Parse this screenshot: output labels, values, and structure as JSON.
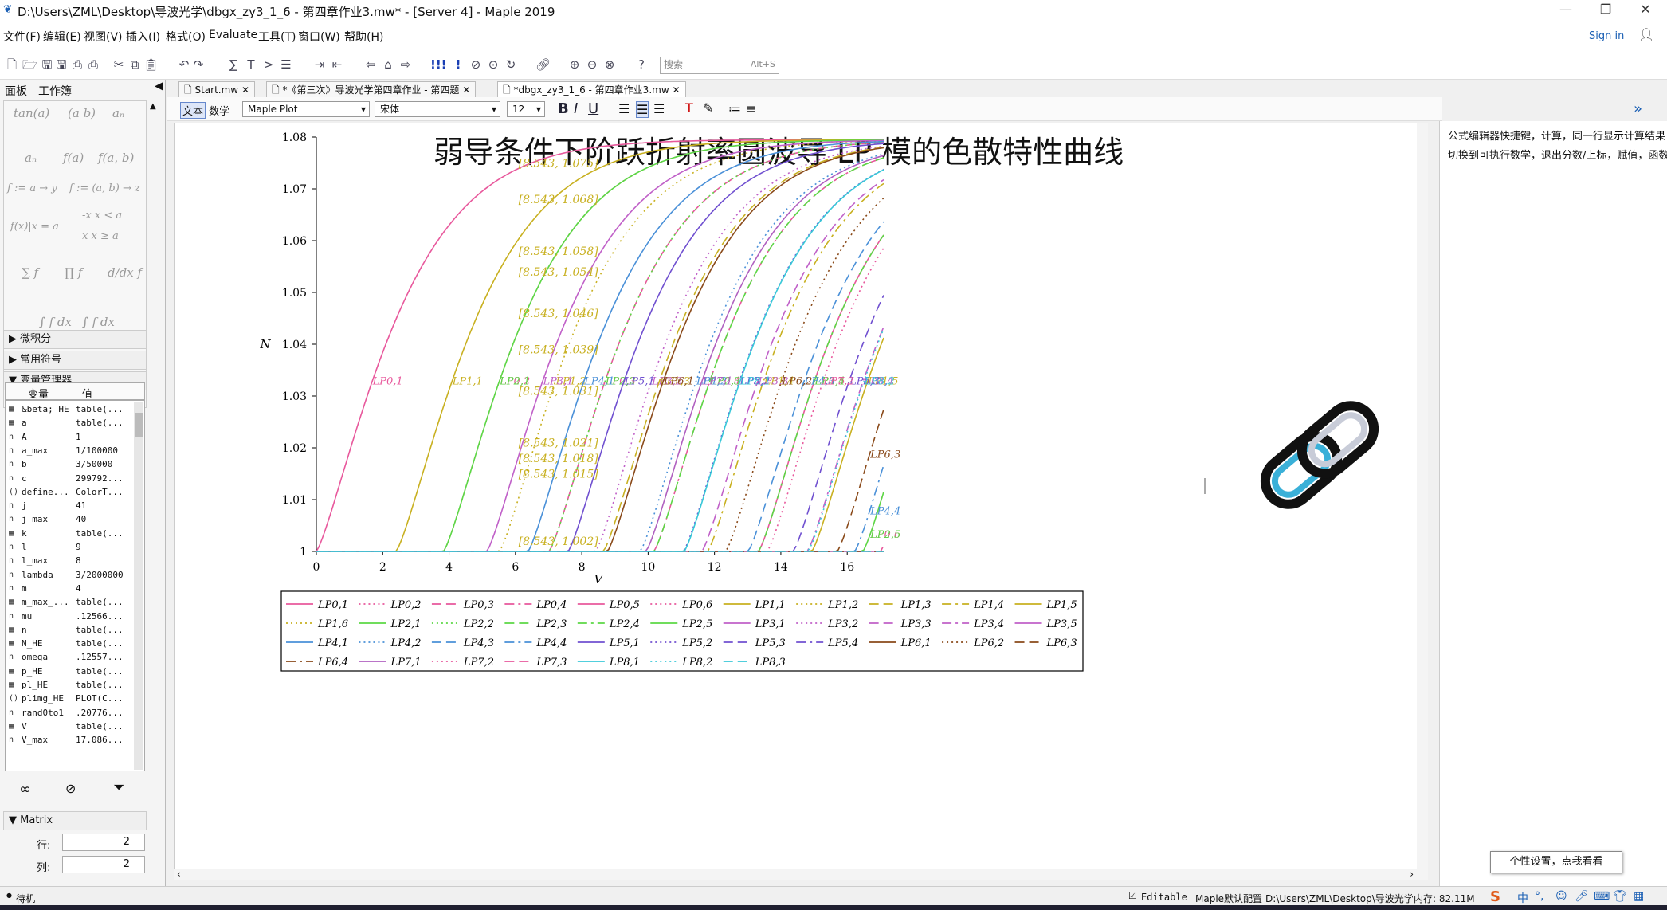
{
  "window": {
    "title": "D:\\Users\\ZML\\Desktop\\导波光学\\dbgx_zy3_1_6 - 第四章作业3.mw* - [Server 4] - Maple 2019",
    "minimize": "—",
    "restore": "❐",
    "close": "✕"
  },
  "menu": [
    "文件(F)",
    "编辑(E)",
    "视图(V)",
    "插入(I)",
    "格式(O)",
    "Evaluate",
    "工具(T)",
    "窗口(W)",
    "帮助(H)"
  ],
  "account": {
    "sign_in": "Sign in"
  },
  "search": {
    "placeholder": "搜索",
    "shortcut": "Alt+S"
  },
  "left_panel": {
    "tabs": [
      "面板",
      "工作簿"
    ],
    "palette_items": [
      "tan(a)",
      "(a b)",
      "aₙ",
      "aₙ",
      "f(a)",
      "f(a, b)",
      "f := a → y",
      "f := (a, b) → z",
      "f(x)|x = a",
      "-x  x < a",
      "x  x ≥ a",
      "∑ f",
      "∏ f",
      "d/dx f",
      "∫ f dx",
      "∫ f dx"
    ],
    "sections": {
      "calculus": "微积分",
      "common_symbols": "常用符号",
      "variable_manager": "变量管理器",
      "matrix": "Matrix"
    },
    "var_headers": {
      "name": "变量",
      "value": "值"
    },
    "variables": [
      {
        "icon": "▦",
        "name": "&beta;_HE",
        "value": "table(..."
      },
      {
        "icon": "▦",
        "name": "a",
        "value": "table(..."
      },
      {
        "icon": "n",
        "name": "A",
        "value": "1"
      },
      {
        "icon": "n",
        "name": "a_max",
        "value": "1/100000"
      },
      {
        "icon": "n",
        "name": "b",
        "value": "3/50000"
      },
      {
        "icon": "n",
        "name": "c",
        "value": "299792..."
      },
      {
        "icon": "()",
        "name": "define...",
        "value": "ColorT..."
      },
      {
        "icon": "n",
        "name": "j",
        "value": "41"
      },
      {
        "icon": "n",
        "name": "j_max",
        "value": "40"
      },
      {
        "icon": "▦",
        "name": "k",
        "value": "table(..."
      },
      {
        "icon": "n",
        "name": "l",
        "value": "9"
      },
      {
        "icon": "n",
        "name": "l_max",
        "value": "8"
      },
      {
        "icon": "n",
        "name": "lambda",
        "value": "3/2000000"
      },
      {
        "icon": "n",
        "name": "m",
        "value": "4"
      },
      {
        "icon": "▦",
        "name": "m_max_...",
        "value": "table(..."
      },
      {
        "icon": "n",
        "name": "mu",
        "value": ".12566..."
      },
      {
        "icon": "▦",
        "name": "n",
        "value": "table(..."
      },
      {
        "icon": "▦",
        "name": "N_HE",
        "value": "table(..."
      },
      {
        "icon": "n",
        "name": "omega",
        "value": ".12557..."
      },
      {
        "icon": "▦",
        "name": "p_HE",
        "value": "table(..."
      },
      {
        "icon": "▦",
        "name": "pl_HE",
        "value": "table(..."
      },
      {
        "icon": "()",
        "name": "plimg_HE",
        "value": "PLOT(C..."
      },
      {
        "icon": "n",
        "name": "rand0to1",
        "value": ".20776..."
      },
      {
        "icon": "▦",
        "name": "V",
        "value": "table(..."
      },
      {
        "icon": "n",
        "name": "V_max",
        "value": "17.086..."
      }
    ],
    "matrix": {
      "rows_label": "行:",
      "rows": "2",
      "cols_label": "列:",
      "cols": "2"
    }
  },
  "doc_tabs": [
    "Start.mw",
    "*《第三次》导波光学第四章作业 - 第四题",
    "*dbgx_zy3_1_6 - 第四章作业3.mw"
  ],
  "context_bar": {
    "mode_text": "文本",
    "mode_math": "数学",
    "style": "Maple Plot",
    "font": "宋体",
    "size": "12"
  },
  "right_panel": {
    "line1": "公式编辑器快捷键，计算，同一行显示计算结果",
    "line2": "切换到可执行数学，退出分数/上标，赋值，函数"
  },
  "status": {
    "state": "待机",
    "editable": "Editable",
    "config": "Maple默认配置",
    "path": "D:\\Users\\ZML\\Desktop\\导波光学",
    "memory": "内存: 82.11M"
  },
  "tooltip": "个性设置，点我看看",
  "chart_data": {
    "type": "line",
    "title": "弱导条件下阶跃折射率圆波导 LP 模的色散特性曲线",
    "xlabel": "V",
    "ylabel": "N",
    "xlim": [
      0,
      17.1
    ],
    "ylim": [
      1,
      1.08
    ],
    "xticks": [
      "0",
      "2",
      "4",
      "6",
      "8",
      "10",
      "12",
      "14",
      "16"
    ],
    "yticks": [
      "1",
      "1.01",
      "1.02",
      "1.03",
      "1.04",
      "1.05",
      "1.06",
      "1.07",
      "1.08"
    ],
    "legend_position": "bottom",
    "annotations": [
      "[8.543, 1.075]",
      "[8.543, 1.068]",
      "[8.543, 1.058]",
      "[8.543, 1.054]",
      "[8.543, 1.046]",
      "[8.543, 1.039]",
      "[8.543, 1.031]",
      "[8.543, 1.021]",
      "[8.543, 1.018]",
      "[8.543, 1.015]",
      "[8.543, 1.002]"
    ],
    "series": [
      {
        "name": "LP0,1",
        "color": "#e8589c",
        "dash": "solid",
        "cutoff": 0.0,
        "asym": 1.0795
      },
      {
        "name": "LP0,2",
        "color": "#e8589c",
        "dash": "dotted",
        "cutoff": 3.832,
        "asym": 1.0795
      },
      {
        "name": "LP0,3",
        "color": "#e8589c",
        "dash": "dashed",
        "cutoff": 7.016,
        "asym": 1.0795
      },
      {
        "name": "LP0,4",
        "color": "#e8589c",
        "dash": "dashdot",
        "cutoff": 10.173,
        "asym": 1.0795
      },
      {
        "name": "LP0,5",
        "color": "#e8589c",
        "dash": "solid",
        "cutoff": 13.324,
        "asym": 1.0795
      },
      {
        "name": "LP0,6",
        "color": "#e8589c",
        "dash": "dotted",
        "cutoff": 16.47,
        "asym": 1.0795
      },
      {
        "name": "LP1,1",
        "color": "#c8b020",
        "dash": "solid",
        "cutoff": 2.405,
        "asym": 1.0795
      },
      {
        "name": "LP1,2",
        "color": "#c8b020",
        "dash": "dotted",
        "cutoff": 5.52,
        "asym": 1.0795
      },
      {
        "name": "LP1,3",
        "color": "#c8b020",
        "dash": "dashed",
        "cutoff": 8.654,
        "asym": 1.0795
      },
      {
        "name": "LP1,4",
        "color": "#c8b020",
        "dash": "dashdot",
        "cutoff": 11.792,
        "asym": 1.0795
      },
      {
        "name": "LP1,5",
        "color": "#c8b020",
        "dash": "solid",
        "cutoff": 14.931,
        "asym": 1.0795
      },
      {
        "name": "LP1,6",
        "color": "#c8b020",
        "dash": "dotted",
        "cutoff": 18.07,
        "asym": 1.0795
      },
      {
        "name": "LP2,1",
        "color": "#5cd845",
        "dash": "solid",
        "cutoff": 3.832,
        "asym": 1.0795
      },
      {
        "name": "LP2,2",
        "color": "#5cd845",
        "dash": "dotted",
        "cutoff": 7.016,
        "asym": 1.0795
      },
      {
        "name": "LP2,3",
        "color": "#5cd845",
        "dash": "dashed",
        "cutoff": 10.173,
        "asym": 1.0795
      },
      {
        "name": "LP2,4",
        "color": "#5cd845",
        "dash": "dashdot",
        "cutoff": 13.324,
        "asym": 1.0795
      },
      {
        "name": "LP2,5",
        "color": "#5cd845",
        "dash": "solid",
        "cutoff": 16.47,
        "asym": 1.0795
      },
      {
        "name": "LP3,1",
        "color": "#c060c8",
        "dash": "solid",
        "cutoff": 5.136,
        "asym": 1.0795
      },
      {
        "name": "LP3,2",
        "color": "#c060c8",
        "dash": "dotted",
        "cutoff": 8.417,
        "asym": 1.0795
      },
      {
        "name": "LP3,3",
        "color": "#c060c8",
        "dash": "dashed",
        "cutoff": 11.62,
        "asym": 1.0795
      },
      {
        "name": "LP3,4",
        "color": "#c060c8",
        "dash": "dashdot",
        "cutoff": 14.796,
        "asym": 1.0795
      },
      {
        "name": "LP3,5",
        "color": "#c060c8",
        "dash": "solid",
        "cutoff": 17.96,
        "asym": 1.0795
      },
      {
        "name": "LP4,1",
        "color": "#4a90d8",
        "dash": "solid",
        "cutoff": 6.38,
        "asym": 1.0795
      },
      {
        "name": "LP4,2",
        "color": "#4a90d8",
        "dash": "dotted",
        "cutoff": 9.761,
        "asym": 1.0795
      },
      {
        "name": "LP4,3",
        "color": "#4a90d8",
        "dash": "dashed",
        "cutoff": 13.015,
        "asym": 1.0795
      },
      {
        "name": "LP4,4",
        "color": "#4a90d8",
        "dash": "dashdot",
        "cutoff": 16.223,
        "asym": 1.0795
      },
      {
        "name": "LP5,1",
        "color": "#7050d0",
        "dash": "solid",
        "cutoff": 7.588,
        "asym": 1.0795
      },
      {
        "name": "LP5,2",
        "color": "#7050d0",
        "dash": "dotted",
        "cutoff": 11.065,
        "asym": 1.0795
      },
      {
        "name": "LP5,3",
        "color": "#7050d0",
        "dash": "dashed",
        "cutoff": 14.373,
        "asym": 1.0795
      },
      {
        "name": "LP5,4",
        "color": "#7050d0",
        "dash": "dashdot",
        "cutoff": 17.616,
        "asym": 1.0795
      },
      {
        "name": "LP6,1",
        "color": "#8a4a1a",
        "dash": "solid",
        "cutoff": 8.771,
        "asym": 1.0795
      },
      {
        "name": "LP6,2",
        "color": "#8a4a1a",
        "dash": "dotted",
        "cutoff": 12.339,
        "asym": 1.0795
      },
      {
        "name": "LP6,3",
        "color": "#8a4a1a",
        "dash": "dashed",
        "cutoff": 15.7,
        "asym": 1.0795
      },
      {
        "name": "LP6,4",
        "color": "#8a4a1a",
        "dash": "dashdot",
        "cutoff": 18.98,
        "asym": 1.0795
      },
      {
        "name": "LP7,1",
        "color": "#b060c0",
        "dash": "solid",
        "cutoff": 9.936,
        "asym": 1.0795
      },
      {
        "name": "LP7,2",
        "color": "#e8589c",
        "dash": "dotted",
        "cutoff": 13.589,
        "asym": 1.0795
      },
      {
        "name": "LP7,3",
        "color": "#e8589c",
        "dash": "dashed",
        "cutoff": 17.004,
        "asym": 1.0795
      },
      {
        "name": "LP8,1",
        "color": "#38c8d8",
        "dash": "solid",
        "cutoff": 11.086,
        "asym": 1.0795
      },
      {
        "name": "LP8,2",
        "color": "#38c8d8",
        "dash": "dotted",
        "cutoff": 14.821,
        "asym": 1.0795
      },
      {
        "name": "LP8,3",
        "color": "#38c8d8",
        "dash": "dashed",
        "cutoff": 18.289,
        "asym": 1.0795
      }
    ]
  }
}
